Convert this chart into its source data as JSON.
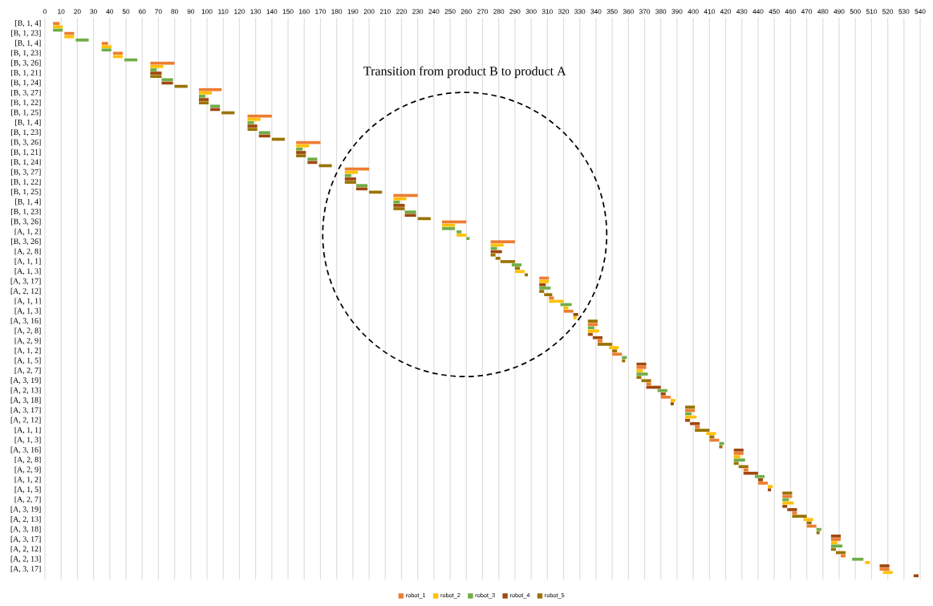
{
  "chart_data": {
    "type": "bar",
    "orientation": "horizontal",
    "annotations": [
      "Transition from product B to product A"
    ],
    "categories": [
      "[B, 1, 4]",
      null,
      null,
      "[B, 1, 23]",
      null,
      null,
      "[B, 1, 4]",
      null,
      null,
      "[B, 1, 23]",
      null,
      null,
      "[B, 3, 26]",
      null,
      null,
      "[B, 1, 21]",
      null,
      null,
      "[B, 1, 24]",
      null,
      null,
      "[B, 3, 27]",
      null,
      null,
      "[B, 1, 22]",
      null,
      null,
      "[B, 1, 25]",
      null,
      null,
      "[B, 1, 4]",
      null,
      null,
      "[B, 1, 23]",
      null,
      null,
      "[B, 3, 26]",
      null,
      null,
      "[B, 1, 21]",
      null,
      null,
      "[B, 1, 24]",
      null,
      null,
      "[B, 3, 27]",
      null,
      null,
      "[B, 1, 22]",
      null,
      null,
      "[B, 1, 25]",
      null,
      null,
      "[B, 1, 4]",
      null,
      null,
      "[B, 1, 23]",
      null,
      null,
      "[B, 3, 26]",
      null,
      null,
      "[A, 1, 2]",
      null,
      null,
      "[B, 3, 26]",
      null,
      null,
      "[A, 2, 8]",
      null,
      null,
      "[A, 1, 1]",
      null,
      null,
      "[A, 1, 3]",
      null,
      null,
      "[A, 3, 17]",
      null,
      null,
      "[A, 2, 12]",
      null,
      null,
      "[A, 1, 1]",
      null,
      null,
      "[A, 1, 3]",
      null,
      null,
      "[A, 3, 16]",
      null,
      null,
      "[A, 2, 8]",
      null,
      null,
      "[A, 2, 9]",
      null,
      null,
      "[A, 1, 2]",
      null,
      null,
      "[A, 1, 5]",
      null,
      null,
      "[A, 2, 7]",
      null,
      null,
      "[A, 3, 19]",
      null,
      null,
      "[A, 2, 13]",
      null,
      null,
      "[A, 3, 18]",
      null,
      null,
      "[A, 3, 17]",
      null,
      null,
      "[A, 2, 12]",
      null,
      null,
      "[A, 1, 1]",
      null,
      null,
      "[A, 1, 3]",
      null,
      null,
      "[A, 3, 16]",
      null,
      null,
      "[A, 2, 8]",
      null,
      null,
      "[A, 2, 9]",
      null,
      null,
      "[A, 1, 2]",
      null,
      null,
      "[A, 1, 5]",
      null,
      null,
      "[A, 2, 7]",
      null,
      null,
      "[A, 3, 19]",
      null,
      null,
      "[A, 2, 13]",
      null,
      null,
      "[A, 3, 18]",
      null,
      null,
      "[A, 3, 17]",
      null,
      null,
      "[A, 2, 12]",
      null,
      null,
      "[A, 2, 13]",
      null,
      null,
      "[A, 3, 17]",
      null,
      null
    ],
    "series": [
      {
        "name": "robot_1",
        "color": "#ed7d31",
        "values": [
          4,
          null,
          null,
          6,
          null,
          null,
          4,
          null,
          null,
          6,
          null,
          null,
          15,
          null,
          null,
          null,
          null,
          null,
          null,
          null,
          14,
          null,
          null,
          null,
          null,
          null,
          null,
          null,
          15,
          null,
          null,
          null,
          null,
          null,
          null,
          null,
          15,
          null,
          null,
          null,
          null,
          null,
          null,
          null,
          15,
          null,
          null,
          null,
          null,
          null,
          null,
          null,
          15,
          null,
          null,
          null,
          null,
          null,
          null,
          null,
          15,
          null,
          null,
          null,
          null,
          null,
          15,
          null,
          null,
          null,
          null,
          null,
          null,
          null,
          null,
          null,
          null,
          6,
          null,
          null,
          null,
          null,
          null,
          3,
          null,
          null,
          null,
          6,
          null,
          null,
          null,
          6,
          null,
          null,
          null,
          null,
          3,
          null,
          null,
          null,
          6,
          null,
          null,
          null,
          6,
          null,
          null,
          null,
          null,
          3,
          null,
          null,
          null,
          6,
          null,
          null,
          null,
          6,
          null,
          null,
          null,
          null,
          3,
          null,
          null,
          null,
          6,
          null,
          null,
          null,
          6,
          null,
          null,
          null,
          null,
          3,
          null,
          null,
          null,
          6,
          null,
          null,
          null,
          6,
          null,
          null,
          null,
          null,
          3,
          null,
          null,
          null,
          6,
          null,
          null,
          null,
          6,
          null,
          null,
          null,
          null,
          3,
          null,
          null,
          null,
          6,
          null,
          null
        ],
        "base": [
          5,
          null,
          null,
          12,
          null,
          null,
          35,
          null,
          null,
          42,
          null,
          null,
          65,
          null,
          null,
          null,
          null,
          null,
          null,
          null,
          95,
          null,
          null,
          null,
          null,
          null,
          null,
          null,
          125,
          null,
          null,
          null,
          null,
          null,
          null,
          null,
          155,
          null,
          null,
          null,
          null,
          null,
          null,
          null,
          185,
          null,
          null,
          null,
          null,
          null,
          null,
          null,
          215,
          null,
          null,
          null,
          null,
          null,
          null,
          null,
          245,
          null,
          null,
          null,
          null,
          null,
          275,
          null,
          null,
          null,
          null,
          null,
          null,
          null,
          null,
          null,
          null,
          305,
          null,
          null,
          null,
          null,
          null,
          311,
          null,
          null,
          null,
          320,
          null,
          null,
          null,
          335,
          null,
          null,
          null,
          null,
          341,
          null,
          null,
          null,
          350,
          null,
          null,
          null,
          365,
          null,
          null,
          null,
          null,
          371,
          null,
          null,
          null,
          380,
          null,
          null,
          null,
          395,
          null,
          null,
          null,
          null,
          401,
          null,
          null,
          null,
          410,
          null,
          null,
          null,
          425,
          null,
          null,
          null,
          null,
          431,
          null,
          null,
          null,
          440,
          null,
          null,
          null,
          455,
          null,
          null,
          null,
          null,
          461,
          null,
          null,
          null,
          470,
          null,
          null,
          null,
          485,
          null,
          null,
          null,
          null,
          491,
          null,
          null,
          null,
          515,
          null,
          null
        ]
      },
      {
        "name": "robot_2",
        "color": "#ffc000",
        "values": [
          null,
          6,
          null,
          null,
          6,
          null,
          null,
          6,
          null,
          null,
          6,
          null,
          null,
          8,
          null,
          null,
          null,
          null,
          null,
          null,
          null,
          8,
          null,
          null,
          null,
          null,
          null,
          null,
          null,
          8,
          null,
          null,
          null,
          null,
          null,
          null,
          null,
          8,
          null,
          null,
          null,
          null,
          null,
          null,
          null,
          8,
          null,
          null,
          null,
          null,
          null,
          null,
          null,
          8,
          null,
          null,
          null,
          null,
          null,
          null,
          null,
          8,
          null,
          null,
          6,
          null,
          null,
          8,
          null,
          null,
          null,
          null,
          null,
          null,
          null,
          6,
          null,
          null,
          6,
          null,
          null,
          null,
          null,
          null,
          9,
          null,
          3,
          null,
          null,
          2,
          null,
          null,
          null,
          7,
          null,
          null,
          null,
          null,
          6,
          null,
          null,
          null,
          null,
          null,
          null,
          4,
          null,
          null,
          null,
          null,
          null,
          null,
          null,
          null,
          3,
          null,
          null,
          null,
          null,
          7,
          null,
          null,
          null,
          null,
          6,
          null,
          null,
          null,
          null,
          null,
          null,
          4,
          null,
          null,
          null,
          null,
          null,
          null,
          null,
          null,
          3,
          null,
          null,
          null,
          null,
          7,
          null,
          null,
          null,
          null,
          6,
          null,
          null,
          null,
          null,
          null,
          null,
          4,
          null,
          null,
          null,
          null,
          null,
          3,
          null,
          null,
          6,
          null
        ],
        "base": [
          null,
          5,
          null,
          null,
          12,
          null,
          null,
          35,
          null,
          null,
          42,
          null,
          null,
          65,
          null,
          null,
          null,
          null,
          null,
          null,
          null,
          95,
          null,
          null,
          null,
          null,
          null,
          null,
          null,
          125,
          null,
          null,
          null,
          null,
          null,
          null,
          null,
          155,
          null,
          null,
          null,
          null,
          null,
          null,
          null,
          185,
          null,
          null,
          null,
          null,
          null,
          null,
          null,
          215,
          null,
          null,
          null,
          null,
          null,
          null,
          null,
          245,
          null,
          null,
          254,
          null,
          null,
          275,
          null,
          null,
          null,
          null,
          null,
          null,
          null,
          290,
          null,
          null,
          305,
          null,
          null,
          null,
          null,
          null,
          311,
          null,
          320,
          null,
          null,
          326,
          null,
          null,
          null,
          335,
          null,
          null,
          null,
          null,
          348,
          null,
          null,
          null,
          null,
          null,
          null,
          365,
          null,
          null,
          null,
          null,
          null,
          null,
          null,
          null,
          386,
          null,
          null,
          null,
          null,
          395,
          null,
          null,
          null,
          null,
          408,
          null,
          null,
          null,
          null,
          null,
          null,
          425,
          null,
          null,
          null,
          null,
          null,
          null,
          null,
          null,
          446,
          null,
          null,
          null,
          null,
          455,
          null,
          null,
          null,
          null,
          468,
          null,
          null,
          null,
          null,
          null,
          null,
          485,
          null,
          null,
          null,
          null,
          null,
          506,
          null,
          null,
          517,
          null
        ]
      },
      {
        "name": "robot_3",
        "color": "#70ad47",
        "values": [
          null,
          null,
          6,
          null,
          null,
          8,
          null,
          null,
          6,
          null,
          null,
          8,
          null,
          null,
          4,
          null,
          null,
          7,
          null,
          null,
          null,
          null,
          4,
          null,
          null,
          6,
          null,
          null,
          null,
          null,
          4,
          null,
          null,
          7,
          null,
          null,
          null,
          null,
          4,
          null,
          null,
          6,
          null,
          null,
          null,
          null,
          4,
          null,
          null,
          7,
          null,
          null,
          null,
          null,
          4,
          null,
          null,
          7,
          null,
          null,
          null,
          null,
          8,
          3,
          null,
          2,
          null,
          null,
          4,
          null,
          null,
          null,
          null,
          6,
          null,
          null,
          null,
          null,
          null,
          null,
          7,
          null,
          null,
          null,
          null,
          7,
          null,
          null,
          null,
          null,
          null,
          null,
          4,
          null,
          null,
          null,
          null,
          null,
          null,
          null,
          null,
          3,
          null,
          null,
          null,
          null,
          7,
          null,
          null,
          null,
          null,
          6,
          null,
          null,
          null,
          null,
          null,
          null,
          4,
          null,
          null,
          null,
          null,
          null,
          null,
          null,
          null,
          3,
          null,
          null,
          null,
          null,
          7,
          null,
          null,
          null,
          null,
          6,
          null,
          null,
          null,
          null,
          null,
          null,
          4,
          null,
          null,
          null,
          null,
          null,
          null,
          null,
          null,
          3,
          null,
          null,
          null,
          null,
          7,
          null,
          null,
          null,
          7,
          null,
          null,
          null,
          null,
          null
        ],
        "base": [
          null,
          null,
          5,
          null,
          null,
          19,
          null,
          null,
          35,
          null,
          null,
          49,
          null,
          null,
          65,
          null,
          null,
          72,
          null,
          null,
          null,
          null,
          95,
          null,
          null,
          102,
          null,
          null,
          null,
          null,
          125,
          null,
          null,
          132,
          null,
          null,
          null,
          null,
          155,
          null,
          null,
          162,
          null,
          null,
          null,
          null,
          185,
          null,
          null,
          192,
          null,
          null,
          null,
          null,
          215,
          null,
          null,
          222,
          null,
          null,
          null,
          null,
          245,
          254,
          null,
          260,
          null,
          null,
          275,
          null,
          null,
          null,
          null,
          288,
          null,
          null,
          null,
          null,
          null,
          null,
          305,
          null,
          null,
          null,
          null,
          318,
          null,
          null,
          null,
          null,
          null,
          null,
          335,
          null,
          null,
          null,
          null,
          null,
          null,
          null,
          null,
          356,
          null,
          null,
          null,
          null,
          365,
          null,
          null,
          null,
          null,
          378,
          null,
          null,
          null,
          null,
          null,
          null,
          395,
          null,
          null,
          null,
          null,
          null,
          null,
          null,
          null,
          416,
          null,
          null,
          null,
          null,
          425,
          null,
          null,
          null,
          null,
          438,
          null,
          null,
          null,
          null,
          null,
          null,
          455,
          null,
          null,
          null,
          null,
          null,
          null,
          null,
          null,
          476,
          null,
          null,
          null,
          null,
          485,
          null,
          null,
          null,
          498,
          null,
          null,
          null,
          null,
          null
        ]
      },
      {
        "name": "robot_4",
        "color": "#9e480e",
        "values": [
          null,
          null,
          null,
          null,
          null,
          null,
          null,
          null,
          null,
          null,
          null,
          null,
          null,
          null,
          null,
          7,
          null,
          null,
          7,
          null,
          null,
          null,
          null,
          6,
          null,
          null,
          6,
          null,
          null,
          null,
          null,
          6,
          null,
          null,
          7,
          null,
          null,
          null,
          null,
          6,
          null,
          null,
          6,
          null,
          null,
          null,
          null,
          7,
          null,
          null,
          7,
          null,
          null,
          null,
          null,
          7,
          null,
          null,
          7,
          null,
          null,
          null,
          null,
          null,
          null,
          null,
          null,
          null,
          null,
          7,
          null,
          null,
          null,
          null,
          null,
          null,
          null,
          null,
          null,
          4,
          null,
          null,
          null,
          null,
          null,
          null,
          null,
          null,
          3,
          null,
          null,
          null,
          null,
          null,
          3,
          6,
          null,
          null,
          null,
          null,
          null,
          null,
          null,
          6,
          null,
          null,
          null,
          null,
          null,
          null,
          9,
          null,
          3,
          null,
          null,
          2,
          null,
          null,
          null,
          null,
          3,
          6,
          null,
          null,
          null,
          null,
          null,
          null,
          null,
          6,
          null,
          null,
          null,
          null,
          null,
          null,
          9,
          null,
          3,
          null,
          null,
          2,
          null,
          null,
          null,
          null,
          3,
          6,
          null,
          null,
          null,
          null,
          null,
          null,
          null,
          6,
          null,
          null,
          null,
          null,
          null,
          null,
          null,
          null,
          6,
          null,
          null,
          3
        ],
        "base": [
          null,
          null,
          null,
          null,
          null,
          null,
          null,
          null,
          null,
          null,
          null,
          null,
          null,
          null,
          null,
          65,
          null,
          null,
          72,
          null,
          null,
          null,
          null,
          95,
          null,
          null,
          102,
          null,
          null,
          null,
          null,
          125,
          null,
          null,
          132,
          null,
          null,
          null,
          null,
          155,
          null,
          null,
          162,
          null,
          null,
          null,
          null,
          185,
          null,
          null,
          192,
          null,
          null,
          null,
          null,
          215,
          null,
          null,
          222,
          null,
          null,
          null,
          null,
          null,
          null,
          null,
          null,
          null,
          null,
          275,
          null,
          null,
          null,
          null,
          null,
          null,
          null,
          null,
          null,
          305,
          null,
          null,
          null,
          null,
          null,
          null,
          null,
          null,
          326,
          null,
          null,
          null,
          null,
          null,
          335,
          338,
          null,
          null,
          null,
          null,
          null,
          null,
          null,
          365,
          null,
          null,
          null,
          null,
          null,
          null,
          371,
          null,
          380,
          null,
          null,
          386,
          null,
          null,
          null,
          null,
          395,
          398,
          null,
          null,
          null,
          null,
          null,
          null,
          null,
          425,
          null,
          null,
          null,
          null,
          null,
          null,
          431,
          null,
          440,
          null,
          null,
          446,
          null,
          null,
          null,
          null,
          455,
          458,
          null,
          null,
          null,
          null,
          null,
          null,
          null,
          485,
          null,
          null,
          null,
          null,
          null,
          null,
          null,
          null,
          515,
          null,
          null,
          536
        ]
      },
      {
        "name": "robot_5",
        "color": "#997300",
        "values": [
          null,
          null,
          null,
          null,
          null,
          null,
          null,
          null,
          null,
          null,
          null,
          null,
          null,
          null,
          null,
          null,
          7,
          null,
          null,
          8,
          null,
          null,
          null,
          null,
          6,
          null,
          null,
          8,
          null,
          null,
          null,
          null,
          6,
          null,
          null,
          8,
          null,
          null,
          null,
          null,
          6,
          null,
          null,
          8,
          null,
          null,
          null,
          null,
          7,
          null,
          null,
          8,
          null,
          null,
          null,
          null,
          7,
          null,
          null,
          8,
          null,
          null,
          null,
          null,
          null,
          null,
          null,
          null,
          null,
          null,
          3,
          3,
          9,
          null,
          3,
          null,
          2,
          null,
          null,
          null,
          null,
          3,
          5,
          null,
          null,
          null,
          null,
          null,
          null,
          null,
          6,
          null,
          null,
          null,
          null,
          null,
          null,
          9,
          null,
          3,
          null,
          null,
          2,
          null,
          null,
          null,
          null,
          3,
          6,
          null,
          null,
          null,
          null,
          null,
          null,
          null,
          6,
          null,
          null,
          null,
          null,
          null,
          null,
          9,
          null,
          3,
          null,
          null,
          2,
          null,
          null,
          null,
          null,
          3,
          6,
          null,
          null,
          null,
          null,
          null,
          null,
          null,
          6,
          null,
          null,
          null,
          null,
          null,
          null,
          9,
          null,
          3,
          null,
          null,
          2,
          null,
          null,
          null,
          null,
          3,
          6,
          null,
          null,
          null,
          null,
          null,
          null,
          null
        ],
        "base": [
          null,
          null,
          null,
          null,
          null,
          null,
          null,
          null,
          null,
          null,
          null,
          null,
          null,
          null,
          null,
          null,
          65,
          null,
          null,
          80,
          null,
          null,
          null,
          null,
          95,
          null,
          null,
          109,
          null,
          null,
          null,
          null,
          125,
          null,
          null,
          140,
          null,
          null,
          null,
          null,
          155,
          null,
          null,
          169,
          null,
          null,
          null,
          null,
          185,
          null,
          null,
          200,
          null,
          null,
          null,
          null,
          215,
          null,
          null,
          230,
          null,
          null,
          null,
          null,
          null,
          null,
          null,
          null,
          null,
          null,
          275,
          278,
          281,
          null,
          290,
          null,
          296,
          null,
          null,
          null,
          null,
          305,
          308,
          null,
          null,
          null,
          null,
          null,
          null,
          null,
          335,
          null,
          null,
          null,
          null,
          null,
          null,
          341,
          null,
          350,
          null,
          null,
          356,
          null,
          null,
          null,
          null,
          365,
          368,
          null,
          null,
          null,
          null,
          null,
          null,
          null,
          395,
          null,
          null,
          null,
          null,
          null,
          null,
          401,
          null,
          410,
          null,
          null,
          416,
          null,
          null,
          null,
          null,
          425,
          428,
          null,
          null,
          null,
          null,
          null,
          null,
          null,
          455,
          null,
          null,
          null,
          null,
          null,
          null,
          461,
          null,
          470,
          null,
          null,
          476,
          null,
          null,
          null,
          null,
          485,
          488,
          null,
          null,
          null,
          null,
          null,
          null,
          null
        ]
      }
    ],
    "xlim": [
      0,
      540
    ],
    "xticks": [
      0,
      10,
      20,
      30,
      40,
      50,
      60,
      70,
      80,
      90,
      100,
      110,
      120,
      130,
      140,
      150,
      160,
      170,
      180,
      190,
      200,
      210,
      220,
      230,
      240,
      250,
      260,
      270,
      280,
      290,
      300,
      310,
      320,
      330,
      340,
      350,
      360,
      370,
      380,
      390,
      400,
      410,
      420,
      430,
      440,
      450,
      460,
      470,
      480,
      490,
      500,
      510,
      520,
      530,
      540
    ],
    "grid": "x",
    "legend": "bottom"
  }
}
